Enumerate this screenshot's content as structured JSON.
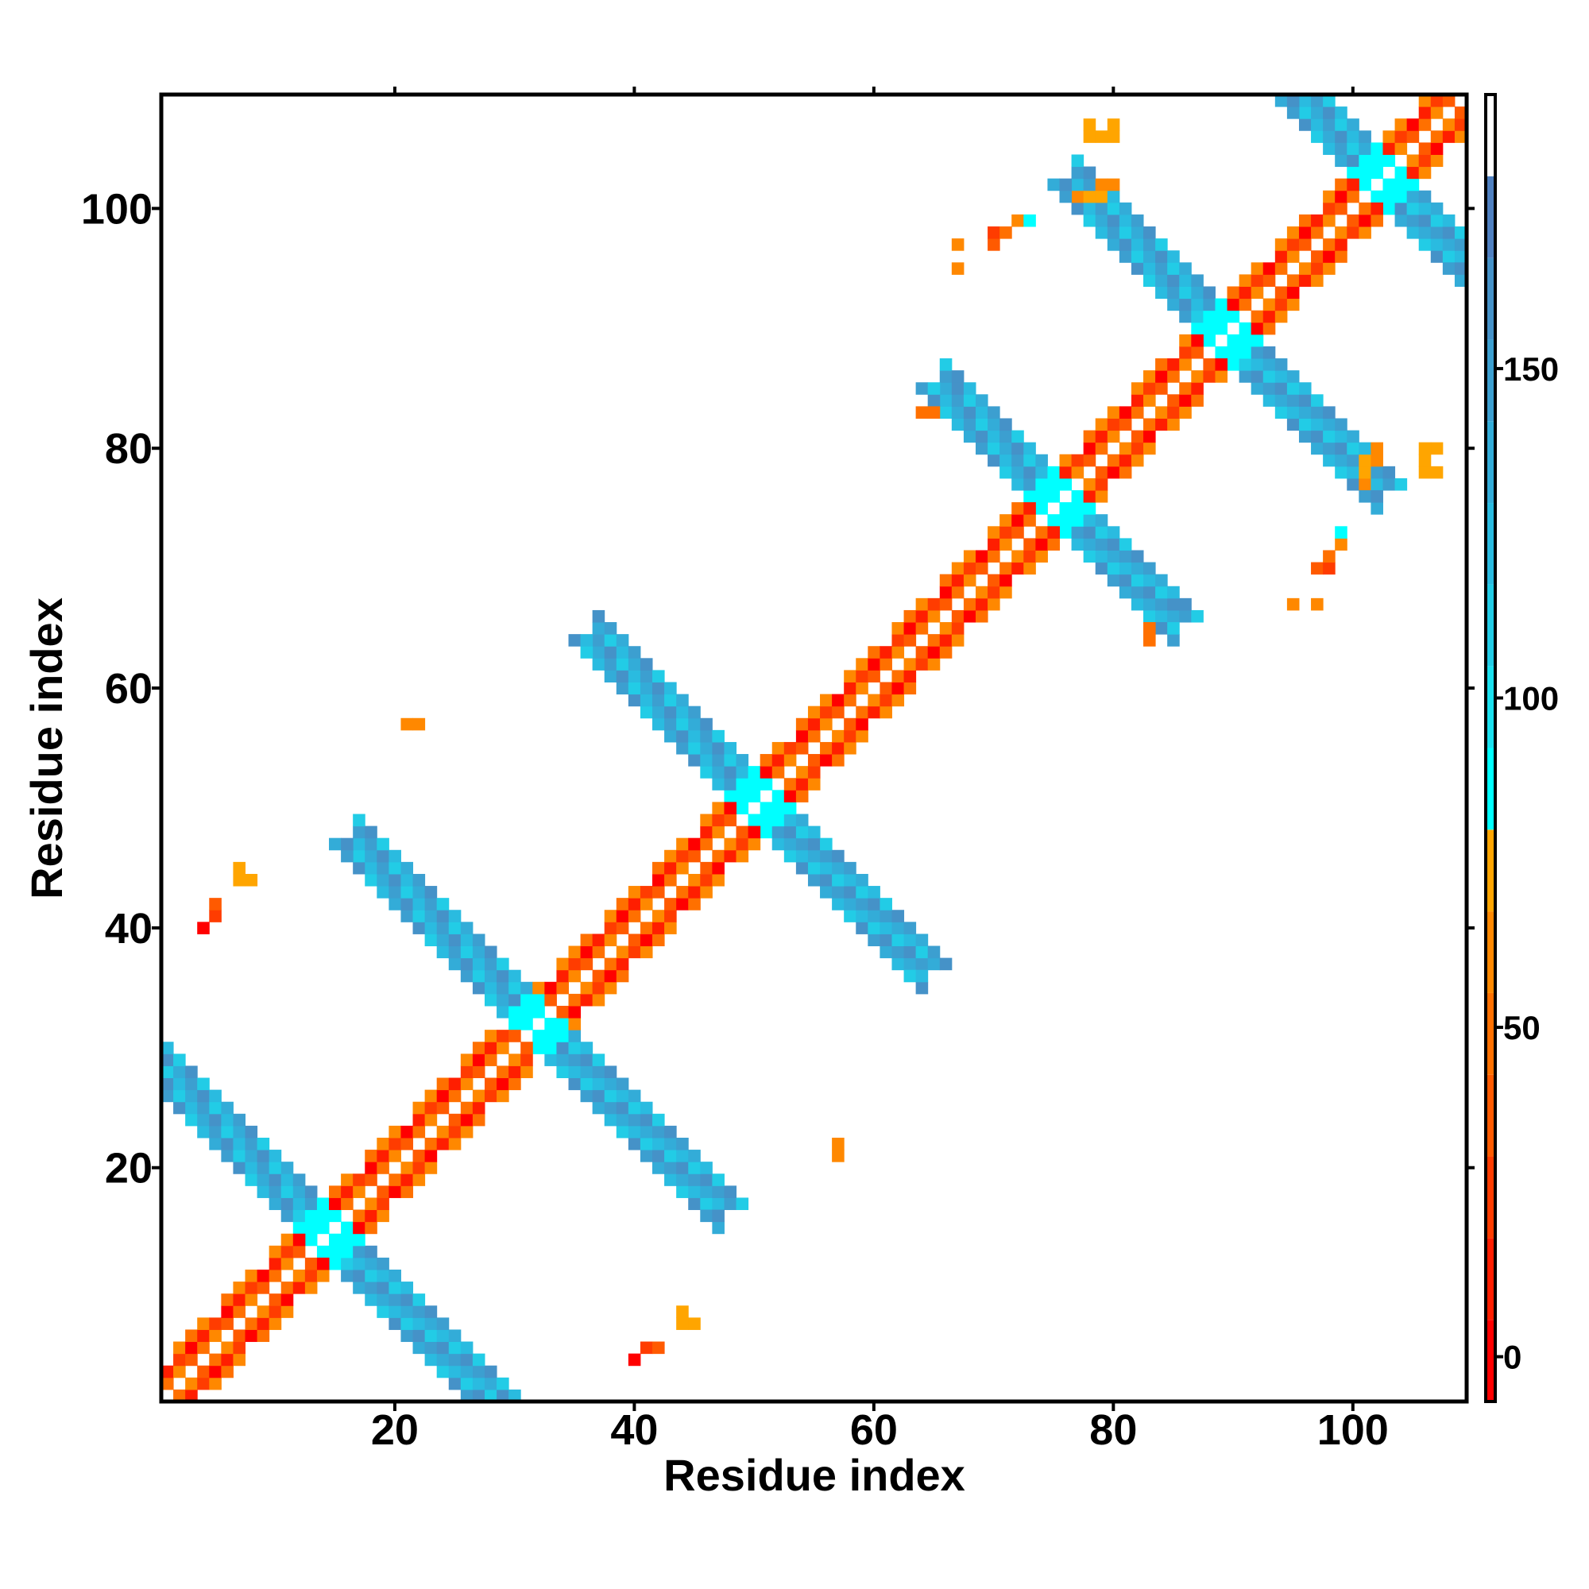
{
  "chart_data": {
    "type": "heatmap",
    "title": "",
    "xlabel": "Residue index",
    "ylabel": "Residue index",
    "n_residues": 109,
    "xlim": [
      0.5,
      109.5
    ],
    "ylim": [
      0.5,
      109.5
    ],
    "x_ticks": [
      20,
      40,
      60,
      80,
      100
    ],
    "y_ticks": [
      20,
      40,
      60,
      80,
      100
    ],
    "symmetric": true,
    "colorbar": {
      "range": [
        -6.8,
        191.6
      ],
      "ticks": [
        0,
        50,
        100,
        150
      ],
      "tick_labels": [
        "0",
        "50",
        "100",
        "150"
      ],
      "levels": [
        {
          "min": -6.8,
          "color": "#ff0000"
        },
        {
          "min": 5.6,
          "color": "#ff1e00"
        },
        {
          "min": 18.0,
          "color": "#ff3c00"
        },
        {
          "min": 30.4,
          "color": "#ff5a00"
        },
        {
          "min": 42.8,
          "color": "#ff7000"
        },
        {
          "min": 55.2,
          "color": "#ff8800"
        },
        {
          "min": 67.6,
          "color": "#ffa500"
        },
        {
          "min": 80.0,
          "color": "#00ffff"
        },
        {
          "min": 92.4,
          "color": "#1ae0ee"
        },
        {
          "min": 104.8,
          "color": "#22cce6"
        },
        {
          "min": 117.2,
          "color": "#2abbe0"
        },
        {
          "min": 129.6,
          "color": "#33acd8"
        },
        {
          "min": 142.0,
          "color": "#3c9fd0"
        },
        {
          "min": 154.4,
          "color": "#4592c8"
        },
        {
          "min": 166.8,
          "color": "#4f80c0"
        },
        {
          "min": 179.2,
          "color": "#ffffff"
        }
      ]
    },
    "diagonal_band": {
      "offset_values": {
        "1": 48,
        "2": 12,
        "3": 58
      }
    },
    "antiparallel_bands": [
      {
        "residue_sum": 29,
        "from": 1,
        "to": 28,
        "base_value": 110
      },
      {
        "residue_sum": 64,
        "from": 17,
        "to": 47,
        "base_value": 112
      },
      {
        "residue_sum": 101,
        "from": 37,
        "to": 64,
        "base_value": 108
      },
      {
        "residue_sum": 151,
        "from": 66,
        "to": 85,
        "base_value": 110
      },
      {
        "residue_sum": 179,
        "from": 77,
        "to": 102,
        "base_value": 112
      },
      {
        "residue_sum": 205,
        "from": 96,
        "to": 109,
        "base_value": 110
      }
    ],
    "contacts": [
      {
        "i": 21,
        "j": 57,
        "value": 62
      },
      {
        "i": 22,
        "j": 57,
        "value": 62
      },
      {
        "i": 7,
        "j": 45,
        "value": 72
      },
      {
        "i": 7,
        "j": 44,
        "value": 72
      },
      {
        "i": 8,
        "j": 44,
        "value": 72
      },
      {
        "i": 4,
        "j": 40,
        "value": 2
      },
      {
        "i": 5,
        "j": 41,
        "value": 20
      },
      {
        "i": 5,
        "j": 42,
        "value": 40
      },
      {
        "i": 67,
        "j": 95,
        "value": 66
      },
      {
        "i": 67,
        "j": 97,
        "value": 66
      },
      {
        "i": 70,
        "j": 97,
        "value": 40
      },
      {
        "i": 70,
        "j": 98,
        "value": 30
      },
      {
        "i": 71,
        "j": 98,
        "value": 45
      },
      {
        "i": 72,
        "j": 99,
        "value": 60
      },
      {
        "i": 73,
        "j": 99,
        "value": 82
      },
      {
        "i": 64,
        "j": 83,
        "value": 50
      },
      {
        "i": 65,
        "j": 83,
        "value": 55
      },
      {
        "i": 78,
        "j": 106,
        "value": 70
      },
      {
        "i": 78,
        "j": 107,
        "value": 70
      },
      {
        "i": 79,
        "j": 106,
        "value": 70
      },
      {
        "i": 80,
        "j": 107,
        "value": 70
      },
      {
        "i": 80,
        "j": 106,
        "value": 70
      },
      {
        "i": 77,
        "j": 101,
        "value": 60
      },
      {
        "i": 78,
        "j": 101,
        "value": 70
      },
      {
        "i": 79,
        "j": 101,
        "value": 70
      },
      {
        "i": 79,
        "j": 102,
        "value": 66
      },
      {
        "i": 80,
        "j": 102,
        "value": 66
      }
    ]
  }
}
